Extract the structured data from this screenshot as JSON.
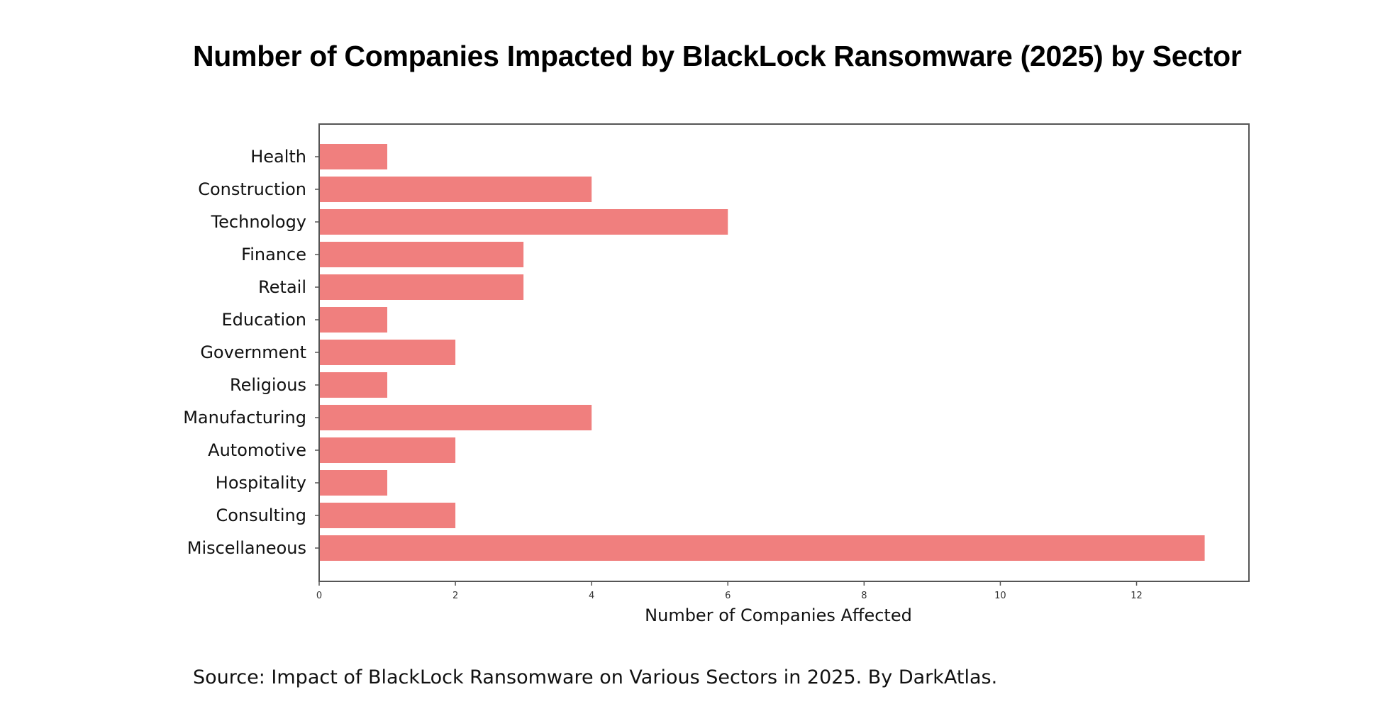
{
  "colors": {
    "bar": "#f07f7e",
    "frame": "#555555",
    "background": "#ffffff"
  },
  "source_text": "Source:  Impact of BlackLock Ransomware on Various Sectors in 2025. By DarkAtlas.",
  "chart_data": {
    "type": "bar",
    "orientation": "horizontal",
    "title": "Number of Companies Impacted by BlackLock Ransomware (2025) by Sector",
    "xlabel": "Number of Companies Affected",
    "ylabel": "",
    "categories": [
      "Health",
      "Construction",
      "Technology",
      "Finance",
      "Retail",
      "Education",
      "Government",
      "Religious",
      "Manufacturing",
      "Automotive",
      "Hospitality",
      "Consulting",
      "Miscellaneous"
    ],
    "values": [
      1,
      4,
      6,
      3,
      3,
      1,
      2,
      1,
      4,
      2,
      1,
      2,
      13
    ],
    "xlim": [
      0,
      13.65
    ],
    "xticks": [
      0,
      2,
      4,
      6,
      8,
      10,
      12
    ],
    "grid": false,
    "legend": "none"
  }
}
